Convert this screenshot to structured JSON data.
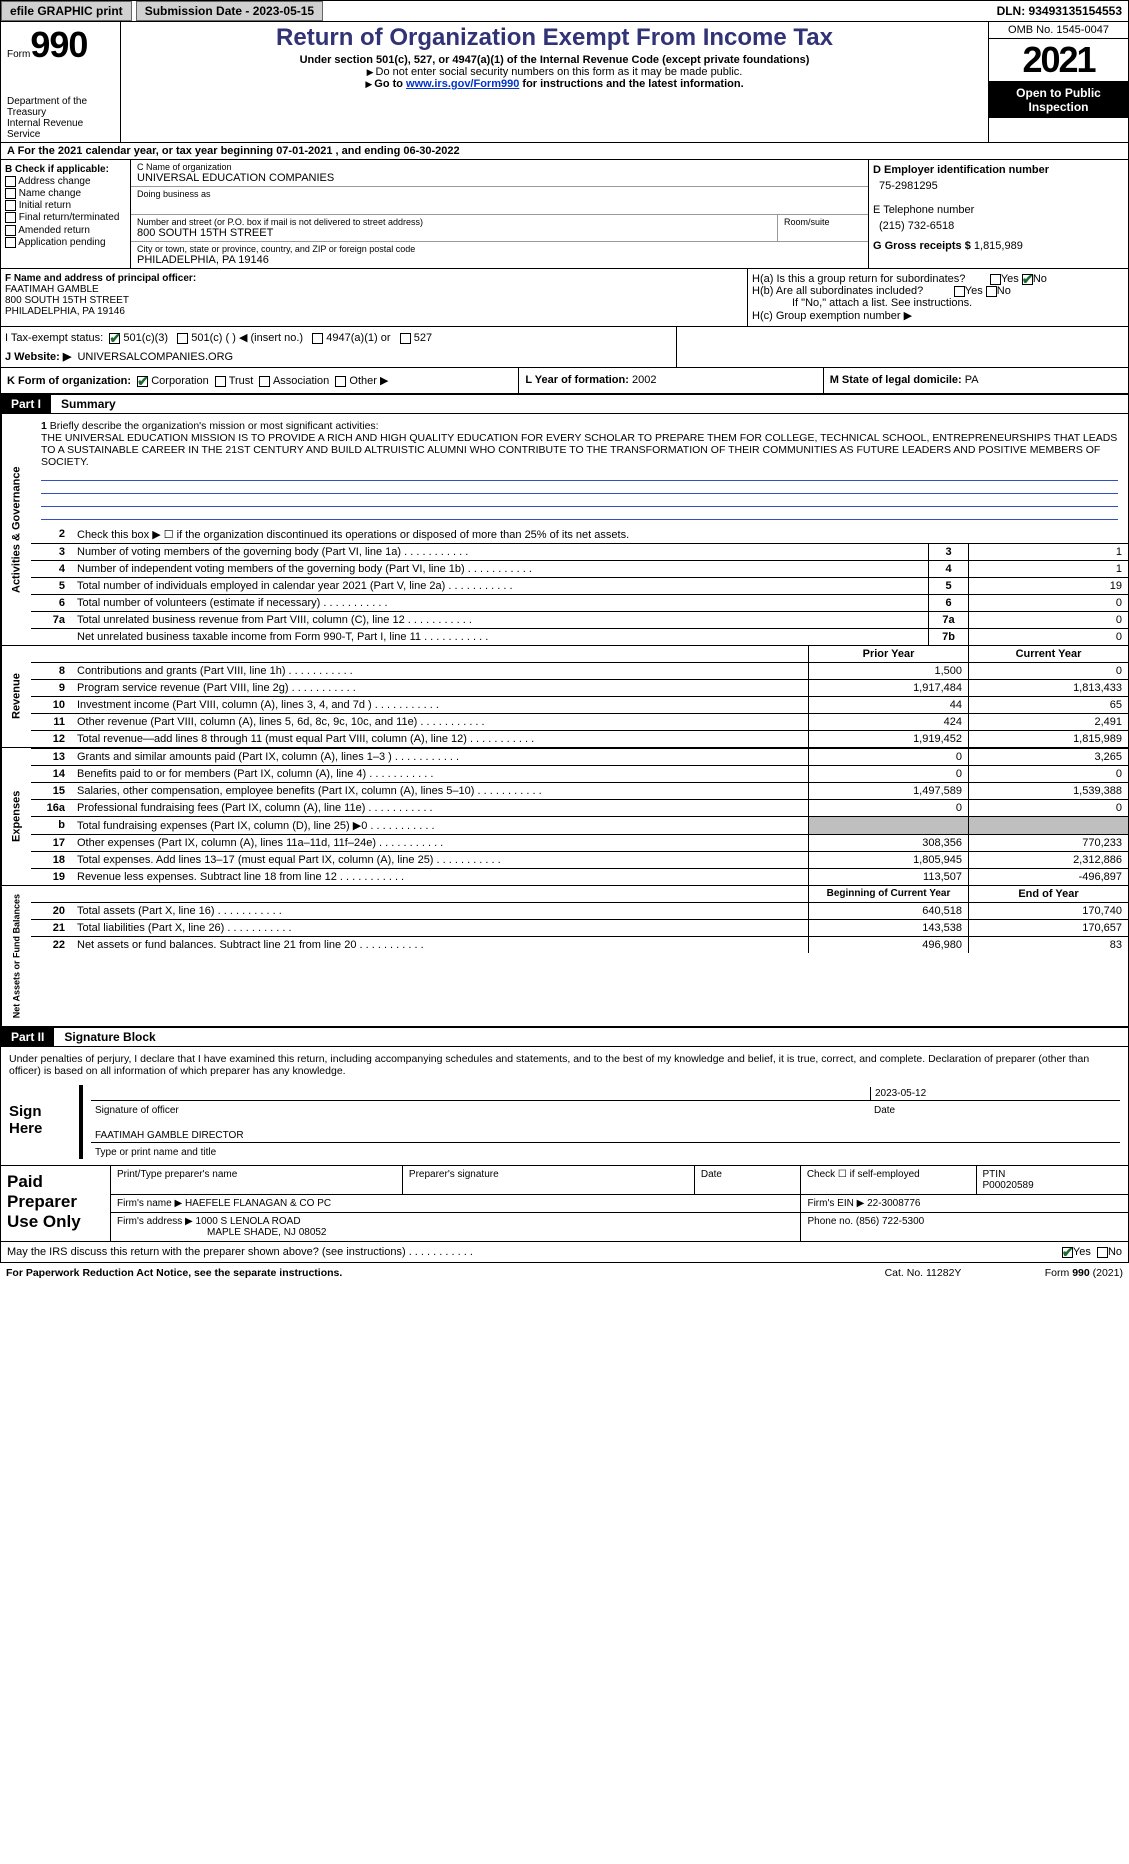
{
  "topbar": {
    "efile": "efile GRAPHIC print",
    "submission": "Submission Date - 2023-05-15",
    "dln": "DLN: 93493135154553"
  },
  "header": {
    "form_label": "Form",
    "form_no": "990",
    "title": "Return of Organization Exempt From Income Tax",
    "sub": "Under section 501(c), 527, or 4947(a)(1) of the Internal Revenue Code (except private foundations)",
    "hint1": "Do not enter social security numbers on this form as it may be made public.",
    "hint2_pre": "Go to ",
    "hint2_link": "www.irs.gov/Form990",
    "hint2_post": " for instructions and the latest information.",
    "dept": "Department of the Treasury\nInternal Revenue Service",
    "omb": "OMB No. 1545-0047",
    "year": "2021",
    "open": "Open to Public Inspection"
  },
  "row_a": "A For the 2021 calendar year, or tax year beginning 07-01-2021   , and ending 06-30-2022",
  "b": {
    "title": "B Check if applicable:",
    "o1": "Address change",
    "o2": "Name change",
    "o3": "Initial return",
    "o4": "Final return/terminated",
    "o5": "Amended return",
    "o6": "Application pending"
  },
  "c": {
    "name_lbl": "C Name of organization",
    "name": "UNIVERSAL EDUCATION COMPANIES",
    "dba_lbl": "Doing business as",
    "dba": "",
    "street_lbl": "Number and street (or P.O. box if mail is not delivered to street address)",
    "street": "800 SOUTH 15TH STREET",
    "suite_lbl": "Room/suite",
    "city_lbl": "City or town, state or province, country, and ZIP or foreign postal code",
    "city": "PHILADELPHIA, PA  19146"
  },
  "d": {
    "lbl": "D Employer identification number",
    "val": "75-2981295"
  },
  "e": {
    "lbl": "E Telephone number",
    "val": "(215) 732-6518"
  },
  "g": {
    "lbl": "G Gross receipts $",
    "val": "1,815,989"
  },
  "f": {
    "lbl": "F  Name and address of principal officer:",
    "name": "FAATIMAH GAMBLE",
    "street": "800 SOUTH 15TH STREET",
    "city": "PHILADELPHIA, PA  19146"
  },
  "h": {
    "a": "H(a)  Is this a group return for subordinates?",
    "b": "H(b)  Are all subordinates included?",
    "note": "If \"No,\" attach a list. See instructions.",
    "c": "H(c)  Group exemption number ▶"
  },
  "i": {
    "lbl": "I   Tax-exempt status:",
    "o1": "501(c)(3)",
    "o2": "501(c) (  ) ◀ (insert no.)",
    "o3": "4947(a)(1) or",
    "o4": "527"
  },
  "j": {
    "lbl": "J  Website: ▶",
    "val": "UNIVERSALCOMPANIES.ORG"
  },
  "k": {
    "lbl": "K Form of organization:",
    "o1": "Corporation",
    "o2": "Trust",
    "o3": "Association",
    "o4": "Other ▶"
  },
  "l": {
    "lbl": "L Year of formation:",
    "val": "2002"
  },
  "m": {
    "lbl": "M State of legal domicile:",
    "val": "PA"
  },
  "part1": {
    "num": "Part I",
    "title": "Summary"
  },
  "s1": {
    "num": "1",
    "lbl": "Briefly describe the organization's mission or most significant activities:",
    "txt": "THE UNIVERSAL EDUCATION MISSION IS TO PROVIDE A RICH AND HIGH QUALITY EDUCATION FOR EVERY SCHOLAR TO PREPARE THEM FOR COLLEGE, TECHNICAL SCHOOL, ENTREPRENEURSHIPS THAT LEADS TO A SUSTAINABLE CAREER IN THE 21ST CENTURY AND BUILD ALTRUISTIC ALUMNI WHO CONTRIBUTE TO THE TRANSFORMATION OF THEIR COMMUNITIES AS FUTURE LEADERS AND POSITIVE MEMBERS OF SOCIETY."
  },
  "s2": {
    "num": "2",
    "lbl": "Check this box ▶ ☐  if the organization discontinued its operations or disposed of more than 25% of its net assets."
  },
  "rows1": [
    {
      "n": "3",
      "t": "Number of voting members of the governing body (Part VI, line 1a)",
      "b": "3",
      "v": "1"
    },
    {
      "n": "4",
      "t": "Number of independent voting members of the governing body (Part VI, line 1b)",
      "b": "4",
      "v": "1"
    },
    {
      "n": "5",
      "t": "Total number of individuals employed in calendar year 2021 (Part V, line 2a)",
      "b": "5",
      "v": "19"
    },
    {
      "n": "6",
      "t": "Total number of volunteers (estimate if necessary)",
      "b": "6",
      "v": "0"
    },
    {
      "n": "7a",
      "t": "Total unrelated business revenue from Part VIII, column (C), line 12",
      "b": "7a",
      "v": "0"
    },
    {
      "n": "",
      "t": "Net unrelated business taxable income from Form 990-T, Part I, line 11",
      "b": "7b",
      "v": "0"
    }
  ],
  "hdr2": {
    "c1": "Prior Year",
    "c2": "Current Year"
  },
  "rev": [
    {
      "n": "8",
      "t": "Contributions and grants (Part VIII, line 1h)",
      "c1": "1,500",
      "c2": "0"
    },
    {
      "n": "9",
      "t": "Program service revenue (Part VIII, line 2g)",
      "c1": "1,917,484",
      "c2": "1,813,433"
    },
    {
      "n": "10",
      "t": "Investment income (Part VIII, column (A), lines 3, 4, and 7d )",
      "c1": "44",
      "c2": "65"
    },
    {
      "n": "11",
      "t": "Other revenue (Part VIII, column (A), lines 5, 6d, 8c, 9c, 10c, and 11e)",
      "c1": "424",
      "c2": "2,491"
    },
    {
      "n": "12",
      "t": "Total revenue—add lines 8 through 11 (must equal Part VIII, column (A), line 12)",
      "c1": "1,919,452",
      "c2": "1,815,989"
    }
  ],
  "exp": [
    {
      "n": "13",
      "t": "Grants and similar amounts paid (Part IX, column (A), lines 1–3 )",
      "c1": "0",
      "c2": "3,265"
    },
    {
      "n": "14",
      "t": "Benefits paid to or for members (Part IX, column (A), line 4)",
      "c1": "0",
      "c2": "0"
    },
    {
      "n": "15",
      "t": "Salaries, other compensation, employee benefits (Part IX, column (A), lines 5–10)",
      "c1": "1,497,589",
      "c2": "1,539,388"
    },
    {
      "n": "16a",
      "t": "Professional fundraising fees (Part IX, column (A), line 11e)",
      "c1": "0",
      "c2": "0"
    },
    {
      "n": "b",
      "t": "Total fundraising expenses (Part IX, column (D), line 25) ▶0",
      "c1": "",
      "c2": "",
      "shade": true
    },
    {
      "n": "17",
      "t": "Other expenses (Part IX, column (A), lines 11a–11d, 11f–24e)",
      "c1": "308,356",
      "c2": "770,233"
    },
    {
      "n": "18",
      "t": "Total expenses. Add lines 13–17 (must equal Part IX, column (A), line 25)",
      "c1": "1,805,945",
      "c2": "2,312,886"
    },
    {
      "n": "19",
      "t": "Revenue less expenses. Subtract line 18 from line 12",
      "c1": "113,507",
      "c2": "-496,897"
    }
  ],
  "hdr3": {
    "c1": "Beginning of Current Year",
    "c2": "End of Year"
  },
  "net": [
    {
      "n": "20",
      "t": "Total assets (Part X, line 16)",
      "c1": "640,518",
      "c2": "170,740"
    },
    {
      "n": "21",
      "t": "Total liabilities (Part X, line 26)",
      "c1": "143,538",
      "c2": "170,657"
    },
    {
      "n": "22",
      "t": "Net assets or fund balances. Subtract line 21 from line 20",
      "c1": "496,980",
      "c2": "83"
    }
  ],
  "part2": {
    "num": "Part II",
    "title": "Signature Block"
  },
  "sig": {
    "decl": "Under penalties of perjury, I declare that I have examined this return, including accompanying schedules and statements, and to the best of my knowledge and belief, it is true, correct, and complete. Declaration of preparer (other than officer) is based on all information of which preparer has any knowledge.",
    "sign": "Sign Here",
    "sig_off": "Signature of officer",
    "date": "2023-05-12",
    "date_lbl": "Date",
    "name": "FAATIMAH GAMBLE  DIRECTOR",
    "name_lbl": "Type or print name and title"
  },
  "paid": {
    "title": "Paid Preparer Use Only",
    "h1": "Print/Type preparer's name",
    "h2": "Preparer's signature",
    "h3": "Date",
    "h4": "Check ☐ if self-employed",
    "h5": "PTIN",
    "ptin": "P00020589",
    "firm_lbl": "Firm's name   ▶",
    "firm": "HAEFELE FLANAGAN & CO PC",
    "ein_lbl": "Firm's EIN ▶",
    "ein": "22-3008776",
    "addr_lbl": "Firm's address ▶",
    "addr1": "1000 S LENOLA ROAD",
    "addr2": "MAPLE SHADE, NJ  08052",
    "phone_lbl": "Phone no.",
    "phone": "(856) 722-5300"
  },
  "may": "May the IRS discuss this return with the preparer shown above? (see instructions)",
  "foot": {
    "l": "For Paperwork Reduction Act Notice, see the separate instructions.",
    "m": "Cat. No. 11282Y",
    "r": "Form 990 (2021)"
  },
  "vtabs": {
    "ag": "Activities & Governance",
    "rev": "Revenue",
    "exp": "Expenses",
    "net": "Net Assets or Fund Balances"
  }
}
